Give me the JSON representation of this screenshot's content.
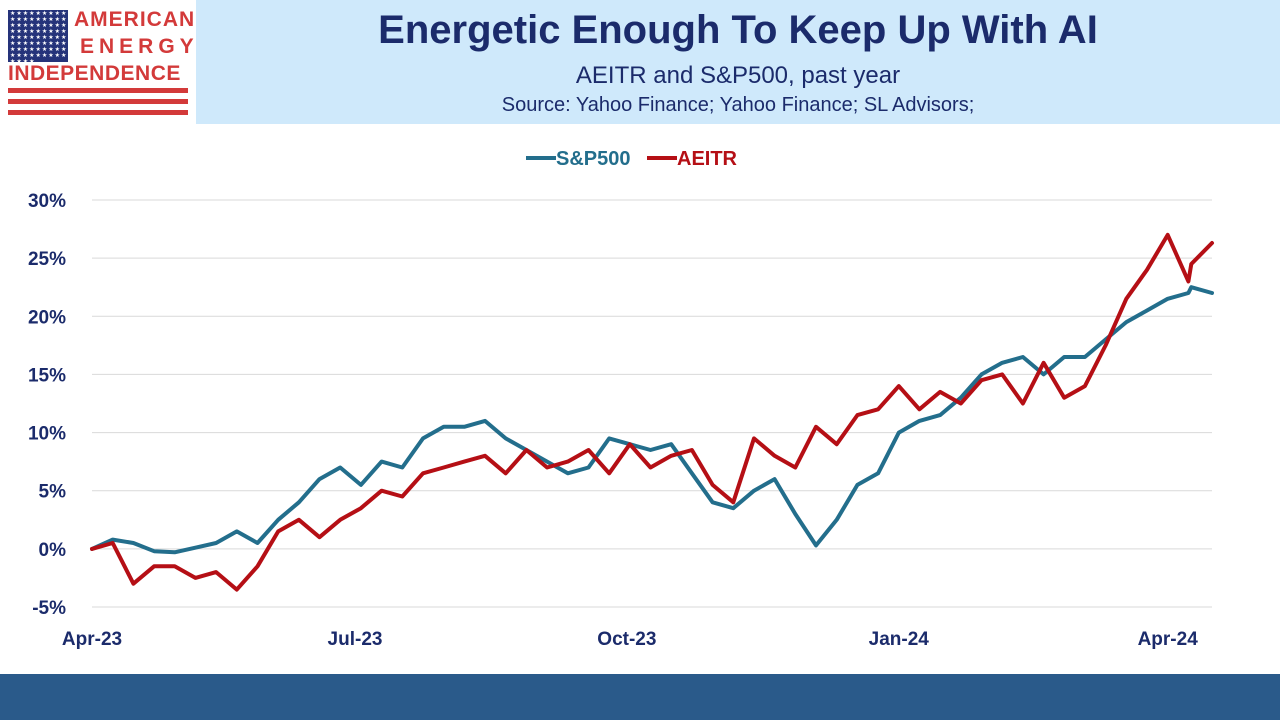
{
  "header": {
    "logo": {
      "line1": "AMERICAN",
      "line2": "ENERGY",
      "line3": "INDEPENDENCE",
      "flag_stars": "★★★★★★★★★★★★★★★★★★★★★★★★★★★★★★★★★★★★★★★★★★★★★★★★★★★★★★★★★★★★★★★★★★★★★★★★★★★★"
    },
    "title": "Energetic Enough To Keep Up With AI",
    "subtitle": "AEITR and S&P500, past year",
    "source": "Source: Yahoo Finance; Yahoo Finance; SL Advisors;"
  },
  "colors": {
    "sp500": "#236e8c",
    "aeitr": "#b50f15",
    "header_band": "#cfe9fb",
    "title_text": "#1b2b6b",
    "footer": "#2a5a8a"
  },
  "chart_data": {
    "type": "line",
    "legend_position": "top-center",
    "grid": true,
    "y_unit": "%",
    "ylim": [
      -5,
      30
    ],
    "y_ticks": [
      -5,
      0,
      5,
      10,
      15,
      20,
      25,
      30
    ],
    "y_tick_labels": [
      "-5%",
      "0%",
      "5%",
      "10%",
      "15%",
      "20%",
      "25%",
      "30%"
    ],
    "x_start": "2023-04-03",
    "x_end": "2024-04-16",
    "x_ticks": [
      "2023-04-01",
      "2023-07-01",
      "2023-10-01",
      "2024-01-01",
      "2024-04-01"
    ],
    "x_tick_labels": [
      "Apr-23",
      "Jul-23",
      "Oct-23",
      "Jan-24",
      "Apr-24"
    ],
    "series": [
      {
        "name": "S&P500",
        "color": "#236e8c",
        "points": [
          [
            "2023-04-03",
            0.0
          ],
          [
            "2023-04-10",
            0.8
          ],
          [
            "2023-04-17",
            0.5
          ],
          [
            "2023-04-24",
            -0.2
          ],
          [
            "2023-05-01",
            -0.3
          ],
          [
            "2023-05-08",
            0.1
          ],
          [
            "2023-05-15",
            0.5
          ],
          [
            "2023-05-22",
            1.5
          ],
          [
            "2023-05-29",
            0.5
          ],
          [
            "2023-06-05",
            2.5
          ],
          [
            "2023-06-12",
            4.0
          ],
          [
            "2023-06-19",
            6.0
          ],
          [
            "2023-06-26",
            7.0
          ],
          [
            "2023-07-03",
            5.5
          ],
          [
            "2023-07-10",
            7.5
          ],
          [
            "2023-07-17",
            7.0
          ],
          [
            "2023-07-24",
            9.5
          ],
          [
            "2023-07-31",
            10.5
          ],
          [
            "2023-08-07",
            10.5
          ],
          [
            "2023-08-14",
            11.0
          ],
          [
            "2023-08-21",
            9.5
          ],
          [
            "2023-08-28",
            8.5
          ],
          [
            "2023-09-04",
            7.5
          ],
          [
            "2023-09-11",
            6.5
          ],
          [
            "2023-09-18",
            7.0
          ],
          [
            "2023-09-25",
            9.5
          ],
          [
            "2023-10-02",
            9.0
          ],
          [
            "2023-10-09",
            8.5
          ],
          [
            "2023-10-16",
            9.0
          ],
          [
            "2023-10-23",
            6.5
          ],
          [
            "2023-10-30",
            4.0
          ],
          [
            "2023-11-06",
            3.5
          ],
          [
            "2023-11-13",
            5.0
          ],
          [
            "2023-11-20",
            6.0
          ],
          [
            "2023-11-27",
            3.0
          ],
          [
            "2023-12-04",
            0.3
          ],
          [
            "2023-12-11",
            2.5
          ],
          [
            "2023-12-18",
            5.5
          ],
          [
            "2023-12-25",
            6.5
          ],
          [
            "2024-01-01",
            10.0
          ],
          [
            "2024-01-08",
            11.0
          ],
          [
            "2024-01-15",
            11.5
          ],
          [
            "2024-01-22",
            13.0
          ],
          [
            "2024-01-29",
            15.0
          ],
          [
            "2024-02-05",
            16.0
          ],
          [
            "2024-02-12",
            16.5
          ],
          [
            "2024-02-19",
            15.0
          ],
          [
            "2024-02-26",
            16.5
          ],
          [
            "2024-03-04",
            16.5
          ],
          [
            "2024-03-11",
            18.0
          ],
          [
            "2024-03-18",
            19.5
          ],
          [
            "2024-03-25",
            20.5
          ],
          [
            "2024-04-01",
            21.5
          ],
          [
            "2024-04-08",
            22.0
          ],
          [
            "2024-04-09",
            22.5
          ],
          [
            "2024-04-16",
            22.0
          ]
        ]
      },
      {
        "name": "AEITR",
        "color": "#b50f15",
        "points": [
          [
            "2023-04-03",
            0.0
          ],
          [
            "2023-04-10",
            0.5
          ],
          [
            "2023-04-17",
            -3.0
          ],
          [
            "2023-04-24",
            -1.5
          ],
          [
            "2023-05-01",
            -1.5
          ],
          [
            "2023-05-08",
            -2.5
          ],
          [
            "2023-05-15",
            -2.0
          ],
          [
            "2023-05-22",
            -3.5
          ],
          [
            "2023-05-29",
            -1.5
          ],
          [
            "2023-06-05",
            1.5
          ],
          [
            "2023-06-12",
            2.5
          ],
          [
            "2023-06-19",
            1.0
          ],
          [
            "2023-06-26",
            2.5
          ],
          [
            "2023-07-03",
            3.5
          ],
          [
            "2023-07-10",
            5.0
          ],
          [
            "2023-07-17",
            4.5
          ],
          [
            "2023-07-24",
            6.5
          ],
          [
            "2023-07-31",
            7.0
          ],
          [
            "2023-08-07",
            7.5
          ],
          [
            "2023-08-14",
            8.0
          ],
          [
            "2023-08-21",
            6.5
          ],
          [
            "2023-08-28",
            8.5
          ],
          [
            "2023-09-04",
            7.0
          ],
          [
            "2023-09-11",
            7.5
          ],
          [
            "2023-09-18",
            8.5
          ],
          [
            "2023-09-25",
            6.5
          ],
          [
            "2023-10-02",
            9.0
          ],
          [
            "2023-10-09",
            7.0
          ],
          [
            "2023-10-16",
            8.0
          ],
          [
            "2023-10-23",
            8.5
          ],
          [
            "2023-10-30",
            5.5
          ],
          [
            "2023-11-06",
            4.0
          ],
          [
            "2023-11-13",
            9.5
          ],
          [
            "2023-11-20",
            8.0
          ],
          [
            "2023-11-27",
            7.0
          ],
          [
            "2023-12-04",
            10.5
          ],
          [
            "2023-12-11",
            9.0
          ],
          [
            "2023-12-18",
            11.5
          ],
          [
            "2023-12-25",
            12.0
          ],
          [
            "2024-01-01",
            14.0
          ],
          [
            "2024-01-08",
            12.0
          ],
          [
            "2024-01-15",
            13.5
          ],
          [
            "2024-01-22",
            12.5
          ],
          [
            "2024-01-29",
            14.5
          ],
          [
            "2024-02-05",
            15.0
          ],
          [
            "2024-02-12",
            12.5
          ],
          [
            "2024-02-19",
            16.0
          ],
          [
            "2024-02-26",
            13.0
          ],
          [
            "2024-03-04",
            14.0
          ],
          [
            "2024-03-11",
            17.5
          ],
          [
            "2024-03-18",
            21.5
          ],
          [
            "2024-03-25",
            24.0
          ],
          [
            "2024-04-01",
            27.0
          ],
          [
            "2024-04-08",
            23.0
          ],
          [
            "2024-04-09",
            24.5
          ],
          [
            "2024-04-16",
            26.3
          ]
        ]
      }
    ]
  }
}
